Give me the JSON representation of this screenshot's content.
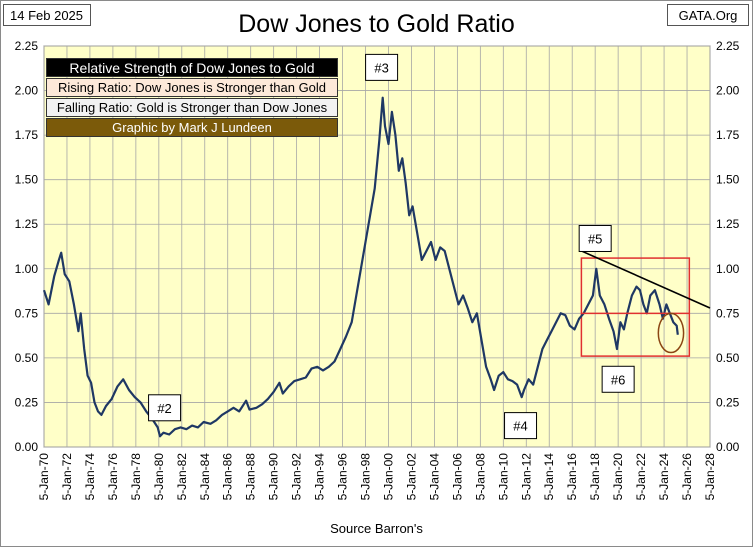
{
  "date_label": "14 Feb 2025",
  "site_label": "GATA.Org",
  "source_label": "Source Barron's",
  "legend": {
    "title": "Relative Strength of Dow Jones to Gold",
    "rising": "Rising Ratio: Dow Jones is Stronger than Gold",
    "falling": "Falling Ratio: Gold is Stronger than Dow Jones",
    "credit": "Graphic by Mark J Lundeen"
  },
  "colors": {
    "plot_bg": "#ffffc8",
    "line": "#1f3864",
    "grid": "#a6a6a6",
    "box": "#e03030",
    "trend": "#000000",
    "circle": "#8b4513",
    "legend_title_bg": "#000000",
    "legend_rising_bg": "#fde9d9",
    "legend_falling_bg": "#f2f2f2",
    "legend_credit_bg": "#7b5a0a"
  },
  "chart_data": {
    "type": "line",
    "title": "Dow Jones to Gold Ratio",
    "xlabel": "",
    "ylabel": "",
    "x_unit": "year",
    "xlim": [
      1970,
      2028
    ],
    "ylim": [
      0,
      2.25
    ],
    "yticks": [
      "0.00",
      "0.25",
      "0.50",
      "0.75",
      "1.00",
      "1.25",
      "1.50",
      "1.75",
      "2.00",
      "2.25"
    ],
    "xtick_labels": [
      "5-Jan-70",
      "5-Jan-72",
      "5-Jan-74",
      "5-Jan-76",
      "5-Jan-78",
      "5-Jan-80",
      "5-Jan-82",
      "5-Jan-84",
      "5-Jan-86",
      "5-Jan-88",
      "5-Jan-90",
      "5-Jan-92",
      "5-Jan-94",
      "5-Jan-96",
      "5-Jan-98",
      "5-Jan-00",
      "5-Jan-02",
      "5-Jan-04",
      "5-Jan-06",
      "5-Jan-08",
      "5-Jan-10",
      "5-Jan-12",
      "5-Jan-14",
      "5-Jan-16",
      "5-Jan-18",
      "5-Jan-20",
      "5-Jan-22",
      "5-Jan-24",
      "5-Jan-26",
      "5-Jan-28"
    ],
    "grid": true,
    "series": [
      {
        "name": "Dow Jones / Gold",
        "points": [
          [
            1970.0,
            0.88
          ],
          [
            1970.4,
            0.8
          ],
          [
            1970.9,
            0.96
          ],
          [
            1971.3,
            1.05
          ],
          [
            1971.5,
            1.09
          ],
          [
            1971.8,
            0.97
          ],
          [
            1972.2,
            0.93
          ],
          [
            1972.6,
            0.8
          ],
          [
            1973.0,
            0.65
          ],
          [
            1973.2,
            0.75
          ],
          [
            1973.5,
            0.55
          ],
          [
            1973.8,
            0.4
          ],
          [
            1974.1,
            0.36
          ],
          [
            1974.4,
            0.25
          ],
          [
            1974.7,
            0.2
          ],
          [
            1975.0,
            0.18
          ],
          [
            1975.4,
            0.23
          ],
          [
            1975.9,
            0.27
          ],
          [
            1976.4,
            0.34
          ],
          [
            1976.9,
            0.38
          ],
          [
            1977.4,
            0.32
          ],
          [
            1977.9,
            0.28
          ],
          [
            1978.4,
            0.25
          ],
          [
            1978.9,
            0.2
          ],
          [
            1979.4,
            0.16
          ],
          [
            1979.9,
            0.11
          ],
          [
            1980.1,
            0.06
          ],
          [
            1980.4,
            0.08
          ],
          [
            1980.9,
            0.07
          ],
          [
            1981.4,
            0.1
          ],
          [
            1981.9,
            0.11
          ],
          [
            1982.4,
            0.1
          ],
          [
            1982.9,
            0.12
          ],
          [
            1983.4,
            0.11
          ],
          [
            1983.9,
            0.14
          ],
          [
            1984.5,
            0.13
          ],
          [
            1985.0,
            0.15
          ],
          [
            1985.5,
            0.18
          ],
          [
            1986.0,
            0.2
          ],
          [
            1986.5,
            0.22
          ],
          [
            1987.0,
            0.2
          ],
          [
            1987.6,
            0.26
          ],
          [
            1987.9,
            0.21
          ],
          [
            1988.5,
            0.22
          ],
          [
            1989.0,
            0.24
          ],
          [
            1989.5,
            0.27
          ],
          [
            1990.0,
            0.31
          ],
          [
            1990.5,
            0.36
          ],
          [
            1990.8,
            0.3
          ],
          [
            1991.3,
            0.34
          ],
          [
            1991.8,
            0.37
          ],
          [
            1992.3,
            0.38
          ],
          [
            1992.8,
            0.39
          ],
          [
            1993.3,
            0.44
          ],
          [
            1993.8,
            0.45
          ],
          [
            1994.3,
            0.43
          ],
          [
            1994.8,
            0.45
          ],
          [
            1995.3,
            0.48
          ],
          [
            1995.8,
            0.55
          ],
          [
            1996.3,
            0.62
          ],
          [
            1996.8,
            0.7
          ],
          [
            1997.2,
            0.85
          ],
          [
            1997.6,
            1.0
          ],
          [
            1998.0,
            1.15
          ],
          [
            1998.4,
            1.3
          ],
          [
            1998.8,
            1.45
          ],
          [
            1999.2,
            1.72
          ],
          [
            1999.5,
            1.96
          ],
          [
            1999.7,
            1.8
          ],
          [
            2000.0,
            1.7
          ],
          [
            2000.3,
            1.88
          ],
          [
            2000.6,
            1.75
          ],
          [
            2000.9,
            1.55
          ],
          [
            2001.2,
            1.62
          ],
          [
            2001.5,
            1.48
          ],
          [
            2001.8,
            1.3
          ],
          [
            2002.1,
            1.35
          ],
          [
            2002.5,
            1.2
          ],
          [
            2002.9,
            1.05
          ],
          [
            2003.3,
            1.1
          ],
          [
            2003.7,
            1.15
          ],
          [
            2004.1,
            1.05
          ],
          [
            2004.5,
            1.12
          ],
          [
            2004.9,
            1.1
          ],
          [
            2005.3,
            1.0
          ],
          [
            2005.7,
            0.9
          ],
          [
            2006.1,
            0.8
          ],
          [
            2006.5,
            0.85
          ],
          [
            2006.9,
            0.78
          ],
          [
            2007.3,
            0.7
          ],
          [
            2007.7,
            0.75
          ],
          [
            2008.1,
            0.6
          ],
          [
            2008.5,
            0.45
          ],
          [
            2008.9,
            0.38
          ],
          [
            2009.2,
            0.32
          ],
          [
            2009.6,
            0.4
          ],
          [
            2010.0,
            0.42
          ],
          [
            2010.4,
            0.38
          ],
          [
            2010.8,
            0.37
          ],
          [
            2011.2,
            0.35
          ],
          [
            2011.6,
            0.28
          ],
          [
            2011.8,
            0.32
          ],
          [
            2012.2,
            0.38
          ],
          [
            2012.6,
            0.35
          ],
          [
            2013.0,
            0.45
          ],
          [
            2013.4,
            0.55
          ],
          [
            2013.8,
            0.6
          ],
          [
            2014.2,
            0.65
          ],
          [
            2014.6,
            0.7
          ],
          [
            2015.0,
            0.75
          ],
          [
            2015.4,
            0.74
          ],
          [
            2015.8,
            0.68
          ],
          [
            2016.2,
            0.66
          ],
          [
            2016.6,
            0.72
          ],
          [
            2017.0,
            0.75
          ],
          [
            2017.4,
            0.8
          ],
          [
            2017.8,
            0.85
          ],
          [
            2018.1,
            1.0
          ],
          [
            2018.4,
            0.85
          ],
          [
            2018.8,
            0.8
          ],
          [
            2019.2,
            0.72
          ],
          [
            2019.6,
            0.65
          ],
          [
            2019.9,
            0.55
          ],
          [
            2020.2,
            0.7
          ],
          [
            2020.5,
            0.66
          ],
          [
            2020.8,
            0.75
          ],
          [
            2021.2,
            0.85
          ],
          [
            2021.6,
            0.9
          ],
          [
            2021.9,
            0.88
          ],
          [
            2022.2,
            0.8
          ],
          [
            2022.5,
            0.75
          ],
          [
            2022.8,
            0.85
          ],
          [
            2023.2,
            0.88
          ],
          [
            2023.6,
            0.8
          ],
          [
            2023.9,
            0.72
          ],
          [
            2024.2,
            0.8
          ],
          [
            2024.5,
            0.75
          ],
          [
            2024.8,
            0.7
          ],
          [
            2025.1,
            0.68
          ],
          [
            2025.2,
            0.63
          ]
        ]
      }
    ],
    "annotations": [
      {
        "label": "#2",
        "x": 1980.5,
        "y": 0.22
      },
      {
        "label": "#3",
        "x": 1999.4,
        "y": 2.13
      },
      {
        "label": "#4",
        "x": 2011.5,
        "y": 0.12
      },
      {
        "label": "#5",
        "x": 2018.0,
        "y": 1.17
      },
      {
        "label": "#6",
        "x": 2020.0,
        "y": 0.38
      }
    ],
    "trendline": {
      "from": [
        2016.8,
        1.1
      ],
      "to": [
        2028,
        0.78
      ]
    },
    "support_line": {
      "from": [
        2016.8,
        0.75
      ],
      "to": [
        2026.2,
        0.75
      ]
    },
    "highlight_box": {
      "x_range": [
        2016.8,
        2026.2
      ],
      "y_range": [
        0.51,
        1.06
      ]
    },
    "highlight_circle": {
      "x": 2024.6,
      "y": 0.64,
      "rx_years": 1.1,
      "ry_value": 0.11
    }
  }
}
